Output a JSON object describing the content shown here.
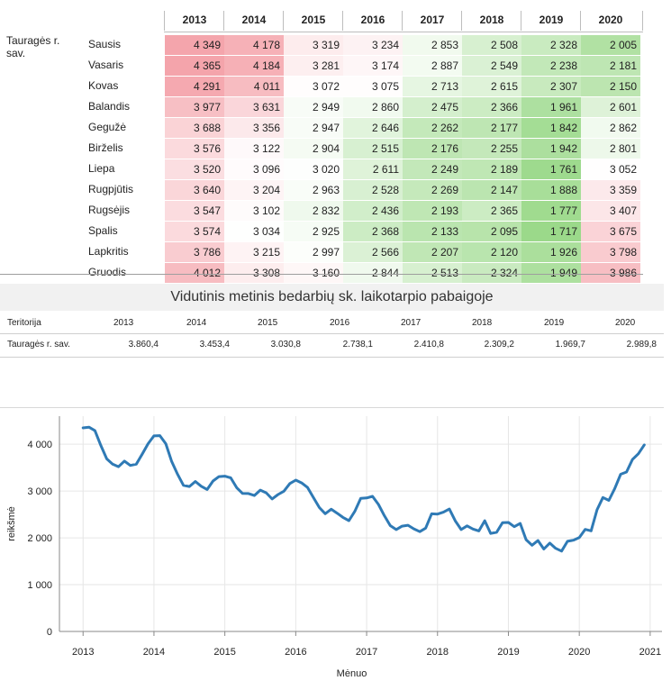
{
  "heatmap": {
    "territory": "Tauragės r. sav.",
    "years": [
      "2013",
      "2014",
      "2015",
      "2016",
      "2017",
      "2018",
      "2019",
      "2020"
    ],
    "months": [
      "Sausis",
      "Vasaris",
      "Kovas",
      "Balandis",
      "Gegužė",
      "Birželis",
      "Liepa",
      "Rugpjūtis",
      "Rugsėjis",
      "Spalis",
      "Lapkritis",
      "Gruodis"
    ],
    "rows": [
      [
        "4 349",
        "4 178",
        "3 319",
        "3 234",
        "2 853",
        "2 508",
        "2 328",
        "2 005"
      ],
      [
        "4 365",
        "4 184",
        "3 281",
        "3 174",
        "2 887",
        "2 549",
        "2 238",
        "2 181"
      ],
      [
        "4 291",
        "4 011",
        "3 072",
        "3 075",
        "2 713",
        "2 615",
        "2 307",
        "2 150"
      ],
      [
        "3 977",
        "3 631",
        "2 949",
        "2 860",
        "2 475",
        "2 366",
        "1 961",
        "2 601"
      ],
      [
        "3 688",
        "3 356",
        "2 947",
        "2 646",
        "2 262",
        "2 177",
        "1 842",
        "2 862"
      ],
      [
        "3 576",
        "3 122",
        "2 904",
        "2 515",
        "2 176",
        "2 255",
        "1 942",
        "2 801"
      ],
      [
        "3 520",
        "3 096",
        "3 020",
        "2 611",
        "2 249",
        "2 189",
        "1 761",
        "3 052"
      ],
      [
        "3 640",
        "3 204",
        "2 963",
        "2 528",
        "2 269",
        "2 147",
        "1 888",
        "3 359"
      ],
      [
        "3 547",
        "3 102",
        "2 832",
        "2 436",
        "2 193",
        "2 365",
        "1 777",
        "3 407"
      ],
      [
        "3 574",
        "3 034",
        "2 925",
        "2 368",
        "2 133",
        "2 095",
        "1 717",
        "3 675"
      ],
      [
        "3 786",
        "3 215",
        "2 997",
        "2 566",
        "2 207",
        "2 120",
        "1 926",
        "3 798"
      ],
      [
        "4 012",
        "3 308",
        "3 160",
        "2 844",
        "2 513",
        "2 324",
        "1 949",
        "3 986"
      ]
    ],
    "colors": {
      "high": "#f4a4ab",
      "mid": "#ffffff",
      "low": "#9bd98a"
    }
  },
  "summary": {
    "title": "Vidutinis metinis bedarbių sk. laikotarpio pabaigoje",
    "header_territory": "Teritorija",
    "years": [
      "2013",
      "2014",
      "2015",
      "2016",
      "2017",
      "2018",
      "2019",
      "2020"
    ],
    "territory": "Tauragės r. sav.",
    "values": [
      "3.860,4",
      "3.453,4",
      "3.030,8",
      "2.738,1",
      "2.410,8",
      "2.309,2",
      "1.969,7",
      "2.989,8"
    ]
  },
  "chart_data": {
    "type": "line",
    "xlabel": "Mėnuo",
    "ylabel": "reikšmė",
    "x_ticks": [
      "2013",
      "2014",
      "2015",
      "2016",
      "2017",
      "2018",
      "2019",
      "2020",
      "2021"
    ],
    "y_ticks": [
      "0",
      "1 000",
      "2 000",
      "3 000",
      "4 000"
    ],
    "ylim": [
      0,
      4600
    ],
    "xlim": [
      "2012-09",
      "2021-03"
    ],
    "grid": true,
    "line_color": "#2f7ab5",
    "series": [
      {
        "x": [
          "2013-01",
          "2013-02",
          "2013-03",
          "2013-04",
          "2013-05",
          "2013-06",
          "2013-07",
          "2013-08",
          "2013-09",
          "2013-10",
          "2013-11",
          "2013-12",
          "2014-01",
          "2014-02",
          "2014-03",
          "2014-04",
          "2014-05",
          "2014-06",
          "2014-07",
          "2014-08",
          "2014-09",
          "2014-10",
          "2014-11",
          "2014-12",
          "2015-01",
          "2015-02",
          "2015-03",
          "2015-04",
          "2015-05",
          "2015-06",
          "2015-07",
          "2015-08",
          "2015-09",
          "2015-10",
          "2015-11",
          "2015-12",
          "2016-01",
          "2016-02",
          "2016-03",
          "2016-04",
          "2016-05",
          "2016-06",
          "2016-07",
          "2016-08",
          "2016-09",
          "2016-10",
          "2016-11",
          "2016-12",
          "2017-01",
          "2017-02",
          "2017-03",
          "2017-04",
          "2017-05",
          "2017-06",
          "2017-07",
          "2017-08",
          "2017-09",
          "2017-10",
          "2017-11",
          "2017-12",
          "2018-01",
          "2018-02",
          "2018-03",
          "2018-04",
          "2018-05",
          "2018-06",
          "2018-07",
          "2018-08",
          "2018-09",
          "2018-10",
          "2018-11",
          "2018-12",
          "2019-01",
          "2019-02",
          "2019-03",
          "2019-04",
          "2019-05",
          "2019-06",
          "2019-07",
          "2019-08",
          "2019-09",
          "2019-10",
          "2019-11",
          "2019-12",
          "2020-01",
          "2020-02",
          "2020-03",
          "2020-04",
          "2020-05",
          "2020-06",
          "2020-07",
          "2020-08",
          "2020-09",
          "2020-10",
          "2020-11",
          "2020-12"
        ],
        "values": [
          4349,
          4365,
          4291,
          3977,
          3688,
          3576,
          3520,
          3640,
          3547,
          3574,
          3786,
          4012,
          4178,
          4184,
          4011,
          3631,
          3356,
          3122,
          3096,
          3204,
          3102,
          3034,
          3215,
          3308,
          3319,
          3281,
          3072,
          2949,
          2947,
          2904,
          3020,
          2963,
          2832,
          2925,
          2997,
          3160,
          3234,
          3174,
          3075,
          2860,
          2646,
          2515,
          2611,
          2528,
          2436,
          2368,
          2566,
          2844,
          2853,
          2887,
          2713,
          2475,
          2262,
          2176,
          2249,
          2269,
          2193,
          2133,
          2207,
          2513,
          2508,
          2549,
          2615,
          2366,
          2177,
          2255,
          2189,
          2147,
          2365,
          2095,
          2120,
          2324,
          2328,
          2238,
          2307,
          1961,
          1842,
          1942,
          1761,
          1888,
          1777,
          1717,
          1926,
          1949,
          2005,
          2181,
          2150,
          2601,
          2862,
          2801,
          3052,
          3359,
          3407,
          3675,
          3798,
          3986
        ]
      }
    ]
  }
}
